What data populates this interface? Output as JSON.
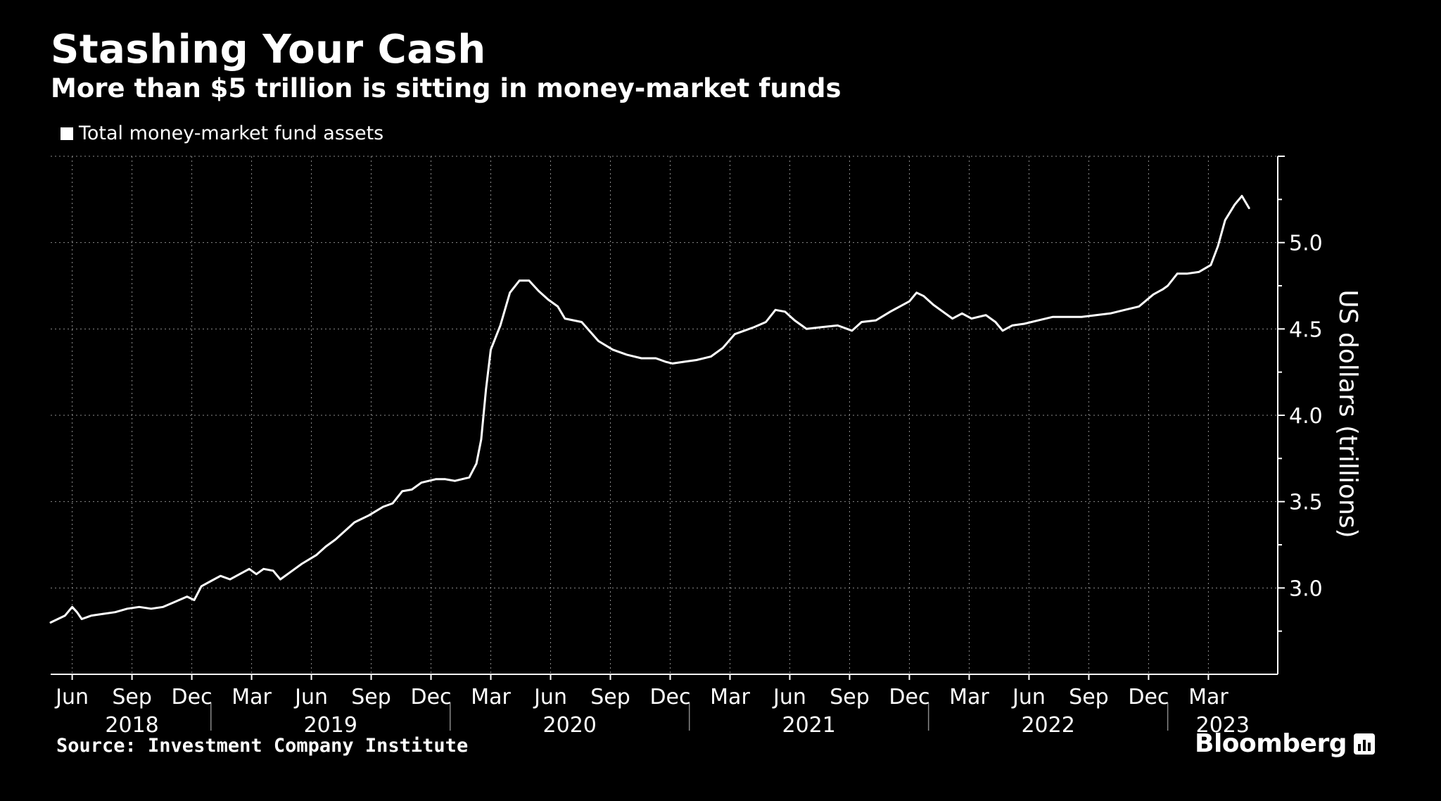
{
  "header": {
    "title": "Stashing Your Cash",
    "subtitle": "More than $5 trillion is sitting in money-market funds"
  },
  "legend": {
    "label": "Total money-market fund assets"
  },
  "footer": {
    "source": "Source: Investment Company Institute",
    "brand": "Bloomberg",
    "brand_icon": "bloomberg-chart-icon"
  },
  "colors": {
    "background": "#000000",
    "line": "#ffffff",
    "grid": "#8c8c8c"
  },
  "chart_data": {
    "type": "line",
    "title": "Stashing Your Cash",
    "subtitle": "More than $5 trillion is sitting in money-market funds",
    "ylabel": "US dollars (trillions)",
    "xlabel": "",
    "ylim": [
      2.5,
      5.5
    ],
    "xlim": [
      2018.33,
      2023.46
    ],
    "yticks": [
      {
        "value": 3.0,
        "label": "3.0"
      },
      {
        "value": 3.5,
        "label": "3.5"
      },
      {
        "value": 4.0,
        "label": "4.0"
      },
      {
        "value": 4.5,
        "label": "4.5"
      },
      {
        "value": 5.0,
        "label": "5.0"
      }
    ],
    "xticks": [
      {
        "x": 2018.42,
        "label": "Jun"
      },
      {
        "x": 2018.67,
        "label": "Sep"
      },
      {
        "x": 2018.92,
        "label": "Dec"
      },
      {
        "x": 2019.17,
        "label": "Mar"
      },
      {
        "x": 2019.42,
        "label": "Jun"
      },
      {
        "x": 2019.67,
        "label": "Sep"
      },
      {
        "x": 2019.92,
        "label": "Dec"
      },
      {
        "x": 2020.17,
        "label": "Mar"
      },
      {
        "x": 2020.42,
        "label": "Jun"
      },
      {
        "x": 2020.67,
        "label": "Sep"
      },
      {
        "x": 2020.92,
        "label": "Dec"
      },
      {
        "x": 2021.17,
        "label": "Mar"
      },
      {
        "x": 2021.42,
        "label": "Jun"
      },
      {
        "x": 2021.67,
        "label": "Sep"
      },
      {
        "x": 2021.92,
        "label": "Dec"
      },
      {
        "x": 2022.17,
        "label": "Mar"
      },
      {
        "x": 2022.42,
        "label": "Jun"
      },
      {
        "x": 2022.67,
        "label": "Sep"
      },
      {
        "x": 2022.92,
        "label": "Dec"
      },
      {
        "x": 2023.17,
        "label": "Mar"
      }
    ],
    "years": [
      {
        "label": "2018",
        "center": 2018.67
      },
      {
        "label": "2019",
        "center": 2019.5
      },
      {
        "label": "2020",
        "center": 2020.5
      },
      {
        "label": "2021",
        "center": 2021.5
      },
      {
        "label": "2022",
        "center": 2022.5
      },
      {
        "label": "2023",
        "center": 2023.23
      }
    ],
    "year_dividers": [
      2019.0,
      2020.0,
      2021.0,
      2022.0,
      2023.0
    ],
    "series": [
      {
        "name": "Total money-market fund assets",
        "points": [
          [
            2018.33,
            2.8
          ],
          [
            2018.36,
            2.82
          ],
          [
            2018.39,
            2.84
          ],
          [
            2018.42,
            2.89
          ],
          [
            2018.44,
            2.86
          ],
          [
            2018.46,
            2.82
          ],
          [
            2018.5,
            2.84
          ],
          [
            2018.55,
            2.85
          ],
          [
            2018.6,
            2.86
          ],
          [
            2018.65,
            2.88
          ],
          [
            2018.7,
            2.89
          ],
          [
            2018.75,
            2.88
          ],
          [
            2018.8,
            2.89
          ],
          [
            2018.85,
            2.92
          ],
          [
            2018.9,
            2.95
          ],
          [
            2018.93,
            2.93
          ],
          [
            2018.96,
            3.01
          ],
          [
            2019.0,
            3.04
          ],
          [
            2019.04,
            3.07
          ],
          [
            2019.08,
            3.05
          ],
          [
            2019.12,
            3.08
          ],
          [
            2019.16,
            3.11
          ],
          [
            2019.19,
            3.08
          ],
          [
            2019.22,
            3.11
          ],
          [
            2019.26,
            3.1
          ],
          [
            2019.29,
            3.05
          ],
          [
            2019.33,
            3.09
          ],
          [
            2019.38,
            3.14
          ],
          [
            2019.44,
            3.19
          ],
          [
            2019.48,
            3.24
          ],
          [
            2019.52,
            3.28
          ],
          [
            2019.56,
            3.33
          ],
          [
            2019.6,
            3.38
          ],
          [
            2019.66,
            3.42
          ],
          [
            2019.72,
            3.47
          ],
          [
            2019.76,
            3.49
          ],
          [
            2019.8,
            3.56
          ],
          [
            2019.84,
            3.57
          ],
          [
            2019.88,
            3.61
          ],
          [
            2019.94,
            3.63
          ],
          [
            2019.98,
            3.63
          ],
          [
            2020.02,
            3.62
          ],
          [
            2020.08,
            3.64
          ],
          [
            2020.11,
            3.72
          ],
          [
            2020.13,
            3.86
          ],
          [
            2020.15,
            4.15
          ],
          [
            2020.17,
            4.38
          ],
          [
            2020.21,
            4.52
          ],
          [
            2020.25,
            4.71
          ],
          [
            2020.29,
            4.78
          ],
          [
            2020.33,
            4.78
          ],
          [
            2020.37,
            4.72
          ],
          [
            2020.41,
            4.67
          ],
          [
            2020.45,
            4.63
          ],
          [
            2020.48,
            4.56
          ],
          [
            2020.55,
            4.54
          ],
          [
            2020.62,
            4.43
          ],
          [
            2020.68,
            4.38
          ],
          [
            2020.74,
            4.35
          ],
          [
            2020.8,
            4.33
          ],
          [
            2020.86,
            4.33
          ],
          [
            2020.9,
            4.31
          ],
          [
            2020.93,
            4.3
          ],
          [
            2020.98,
            4.31
          ],
          [
            2021.03,
            4.32
          ],
          [
            2021.09,
            4.34
          ],
          [
            2021.14,
            4.39
          ],
          [
            2021.19,
            4.47
          ],
          [
            2021.23,
            4.49
          ],
          [
            2021.27,
            4.51
          ],
          [
            2021.32,
            4.54
          ],
          [
            2021.36,
            4.61
          ],
          [
            2021.4,
            4.6
          ],
          [
            2021.44,
            4.55
          ],
          [
            2021.49,
            4.5
          ],
          [
            2021.55,
            4.51
          ],
          [
            2021.62,
            4.52
          ],
          [
            2021.68,
            4.49
          ],
          [
            2021.72,
            4.54
          ],
          [
            2021.78,
            4.55
          ],
          [
            2021.84,
            4.6
          ],
          [
            2021.88,
            4.63
          ],
          [
            2021.92,
            4.66
          ],
          [
            2021.95,
            4.71
          ],
          [
            2021.98,
            4.69
          ],
          [
            2022.02,
            4.64
          ],
          [
            2022.06,
            4.6
          ],
          [
            2022.1,
            4.56
          ],
          [
            2022.14,
            4.59
          ],
          [
            2022.18,
            4.56
          ],
          [
            2022.24,
            4.58
          ],
          [
            2022.28,
            4.54
          ],
          [
            2022.31,
            4.49
          ],
          [
            2022.35,
            4.52
          ],
          [
            2022.4,
            4.53
          ],
          [
            2022.46,
            4.55
          ],
          [
            2022.52,
            4.57
          ],
          [
            2022.58,
            4.57
          ],
          [
            2022.64,
            4.57
          ],
          [
            2022.7,
            4.58
          ],
          [
            2022.76,
            4.59
          ],
          [
            2022.82,
            4.61
          ],
          [
            2022.88,
            4.63
          ],
          [
            2022.94,
            4.7
          ],
          [
            2022.98,
            4.73
          ],
          [
            2023.0,
            4.75
          ],
          [
            2023.04,
            4.82
          ],
          [
            2023.08,
            4.82
          ],
          [
            2023.13,
            4.83
          ],
          [
            2023.18,
            4.87
          ],
          [
            2023.21,
            4.98
          ],
          [
            2023.24,
            5.13
          ],
          [
            2023.28,
            5.22
          ],
          [
            2023.31,
            5.27
          ],
          [
            2023.34,
            5.2
          ]
        ]
      }
    ]
  }
}
